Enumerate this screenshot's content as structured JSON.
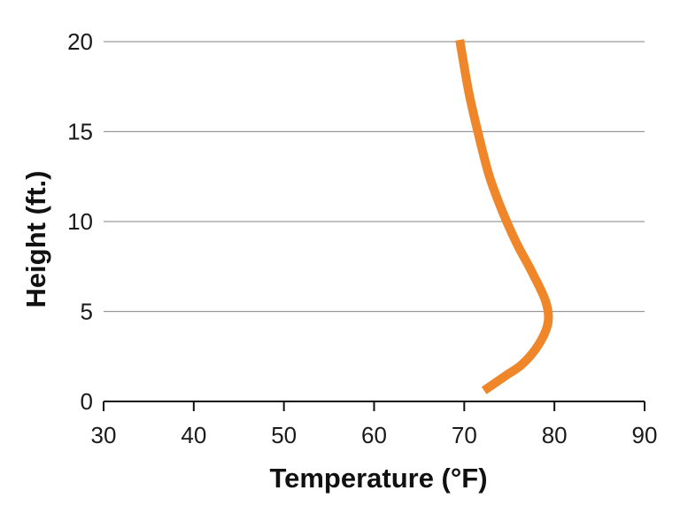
{
  "chart_data": {
    "type": "line",
    "title": "",
    "xlabel": "Temperature (°F)",
    "ylabel": "Height (ft.)",
    "xlim": [
      30,
      90
    ],
    "ylim": [
      0,
      20
    ],
    "x_ticks": [
      "30",
      "40",
      "50",
      "60",
      "70",
      "80",
      "90"
    ],
    "y_ticks": [
      "0",
      "5",
      "10",
      "15",
      "20"
    ],
    "grid": "horizontal",
    "series": [
      {
        "color": "#f0862a",
        "points": [
          {
            "x": 72.2,
            "y": 0.6
          },
          {
            "x": 74.5,
            "y": 1.4
          },
          {
            "x": 76.5,
            "y": 2.1
          },
          {
            "x": 78.3,
            "y": 3.2
          },
          {
            "x": 79.3,
            "y": 4.4
          },
          {
            "x": 79.0,
            "y": 5.6
          },
          {
            "x": 77.5,
            "y": 7.2
          },
          {
            "x": 75.8,
            "y": 8.8
          },
          {
            "x": 74.2,
            "y": 10.6
          },
          {
            "x": 72.8,
            "y": 12.5
          },
          {
            "x": 71.6,
            "y": 14.8
          },
          {
            "x": 70.5,
            "y": 17.2
          },
          {
            "x": 69.5,
            "y": 20.1
          }
        ]
      }
    ]
  }
}
